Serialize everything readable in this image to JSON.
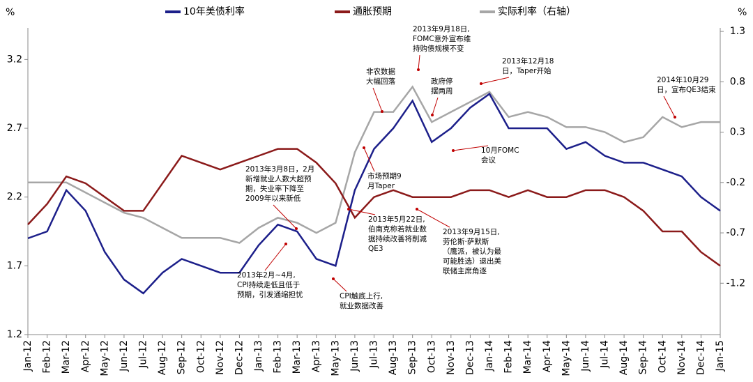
{
  "chart_data": {
    "type": "line",
    "y_unit": "%",
    "y2_unit": "%",
    "categories": [
      "Jan-12",
      "Feb-12",
      "Mar-12",
      "Apr-12",
      "May-12",
      "Jun-12",
      "Jul-12",
      "Aug-12",
      "Sep-12",
      "Oct-12",
      "Nov-12",
      "Dec-12",
      "Jan-13",
      "Feb-13",
      "Mar-13",
      "Apr-13",
      "May-13",
      "Jun-13",
      "Jul-13",
      "Aug-13",
      "Sep-13",
      "Oct-13",
      "Nov-13",
      "Dec-13",
      "Jan-14",
      "Feb-14",
      "Mar-14",
      "Apr-14",
      "May-14",
      "Jun-14",
      "Jul-14",
      "Aug-14",
      "Sep-14",
      "Oct-14",
      "Nov-14",
      "Dec-14",
      "Jan-15"
    ],
    "series": [
      {
        "name": "10年美债利率",
        "color": "#1c1f8a",
        "values": [
          1.9,
          1.95,
          2.25,
          2.1,
          1.8,
          1.6,
          1.5,
          1.65,
          1.75,
          1.7,
          1.65,
          1.65,
          1.85,
          2.0,
          1.95,
          1.75,
          1.7,
          2.25,
          2.55,
          2.7,
          2.9,
          2.6,
          2.7,
          2.85,
          2.95,
          2.7,
          2.7,
          2.7,
          2.55,
          2.6,
          2.5,
          2.45,
          2.45,
          2.4,
          2.35,
          2.2,
          2.1
        ]
      },
      {
        "name": "通胀预期",
        "color": "#8b1a1a",
        "values": [
          2.0,
          2.15,
          2.35,
          2.3,
          2.2,
          2.1,
          2.1,
          2.3,
          2.5,
          2.45,
          2.4,
          2.45,
          2.5,
          2.55,
          2.55,
          2.45,
          2.3,
          2.05,
          2.2,
          2.25,
          2.2,
          2.2,
          2.2,
          2.25,
          2.25,
          2.2,
          2.25,
          2.2,
          2.2,
          2.25,
          2.25,
          2.2,
          2.1,
          1.95,
          1.95,
          1.8,
          1.7
        ]
      },
      {
        "name": "实际利率（右轴）",
        "color": "#a6a6a6",
        "axis": "y2",
        "values": [
          -0.2,
          -0.2,
          -0.2,
          -0.3,
          -0.4,
          -0.5,
          -0.55,
          -0.65,
          -0.75,
          -0.75,
          -0.75,
          -0.8,
          -0.65,
          -0.55,
          -0.6,
          -0.7,
          -0.6,
          0.1,
          0.5,
          0.5,
          0.75,
          0.4,
          0.5,
          0.6,
          0.7,
          0.45,
          0.5,
          0.45,
          0.35,
          0.35,
          0.3,
          0.2,
          0.25,
          0.45,
          0.35,
          0.4,
          0.4
        ]
      }
    ],
    "ylim": [
      1.2,
      3.43
    ],
    "yticks": [
      1.2,
      1.7,
      2.2,
      2.7,
      3.2
    ],
    "y2lim": [
      -1.71,
      1.335
    ],
    "y2ticks": [
      -1.2,
      -0.7,
      -0.2,
      0.3,
      0.8,
      1.3
    ],
    "annotations": [
      [
        "2013年9月18日,",
        "FOMC意外宣布维",
        "持购债规模不变"
      ],
      [
        "非农数据",
        "大幅回落"
      ],
      [
        "政府停",
        "摆两周"
      ],
      [
        "2013年12月18",
        "日，Taper开始"
      ],
      [
        "2014年10月29",
        "日，宣布QE3结束"
      ],
      [
        "10月FOMC",
        "会议"
      ],
      [
        "市场预期9",
        "月Taper"
      ],
      [
        "2013年3月8日，2月",
        "新增就业人数大超预",
        "期，失业率下降至",
        "2009年以来新低"
      ],
      [
        "2013年5月22日,",
        "伯南克称若就业数",
        "据持续改善将削减",
        "QE3"
      ],
      [
        "2013年9月15日,",
        "劳伦斯·萨默斯",
        "（鹰派，被认为最",
        "可能胜选）退出美",
        "联储主席角逐"
      ],
      [
        "2013年2月~4月,",
        "CPI持续走低且低于",
        "预期，引发通缩担忧"
      ],
      [
        "CPI触底上行,",
        "就业数据改善"
      ]
    ]
  }
}
